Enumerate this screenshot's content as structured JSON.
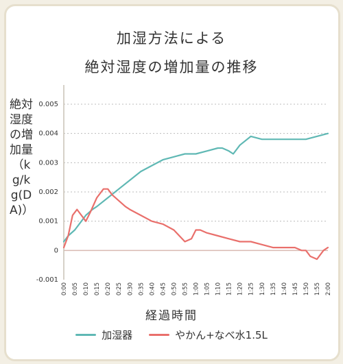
{
  "chart_data": {
    "type": "line",
    "title_line1": "加湿方法による",
    "title_line2": "絶対湿度の増加量の推移",
    "xlabel": "経過時間",
    "ylabel": "絶対湿度の増加量（kg/kg(DA)）",
    "ylim": [
      -0.001,
      0.005
    ],
    "yticks": [
      "-0.001",
      "0",
      "0.001",
      "0.002",
      "0.003",
      "0.004",
      "0.005"
    ],
    "xticks": [
      "0:00",
      "0:05",
      "0:10",
      "0:15",
      "0:20",
      "0:25",
      "0:30",
      "0:35",
      "0:40",
      "0:45",
      "0:50",
      "0:55",
      "1:00",
      "1:05",
      "1:10",
      "1:15",
      "1:20",
      "1:25",
      "1:30",
      "1:35",
      "1:40",
      "1:45",
      "1:50",
      "1:55",
      "2:00"
    ],
    "grid": true,
    "legend": "bottom",
    "series": [
      {
        "name": "加湿器",
        "color": "#5fb8b4",
        "x": [
          0,
          2,
          5,
          8,
          10,
          13,
          15,
          20,
          25,
          30,
          35,
          40,
          45,
          50,
          55,
          60,
          65,
          70,
          72,
          75,
          77,
          80,
          85,
          90,
          95,
          100,
          105,
          110,
          115,
          120
        ],
        "values": [
          0.0003,
          0.0005,
          0.0007,
          0.001,
          0.0012,
          0.0014,
          0.0015,
          0.0018,
          0.0021,
          0.0024,
          0.0027,
          0.0029,
          0.0031,
          0.0032,
          0.0033,
          0.0033,
          0.0034,
          0.0035,
          0.0035,
          0.0034,
          0.0033,
          0.0036,
          0.0039,
          0.0038,
          0.0038,
          0.0038,
          0.0038,
          0.0038,
          0.0039,
          0.004
        ]
      },
      {
        "name": "やかん+なべ水1.5L",
        "color": "#e96f6b",
        "x": [
          0,
          2,
          4,
          6,
          8,
          10,
          12,
          15,
          18,
          20,
          22,
          25,
          28,
          30,
          35,
          40,
          45,
          50,
          55,
          58,
          60,
          62,
          65,
          70,
          75,
          80,
          85,
          90,
          95,
          100,
          105,
          108,
          110,
          112,
          115,
          118,
          120
        ],
        "values": [
          0.0001,
          0.0005,
          0.0012,
          0.0014,
          0.0012,
          0.001,
          0.0013,
          0.0018,
          0.0021,
          0.0021,
          0.0019,
          0.0017,
          0.0015,
          0.0014,
          0.0012,
          0.001,
          0.0009,
          0.0007,
          0.0003,
          0.0004,
          0.0007,
          0.0007,
          0.0006,
          0.0005,
          0.0004,
          0.0003,
          0.0003,
          0.0002,
          0.0001,
          0.0001,
          0.0001,
          0.0,
          0.0,
          -0.0002,
          -0.0003,
          0.0,
          0.0001
        ]
      }
    ]
  }
}
